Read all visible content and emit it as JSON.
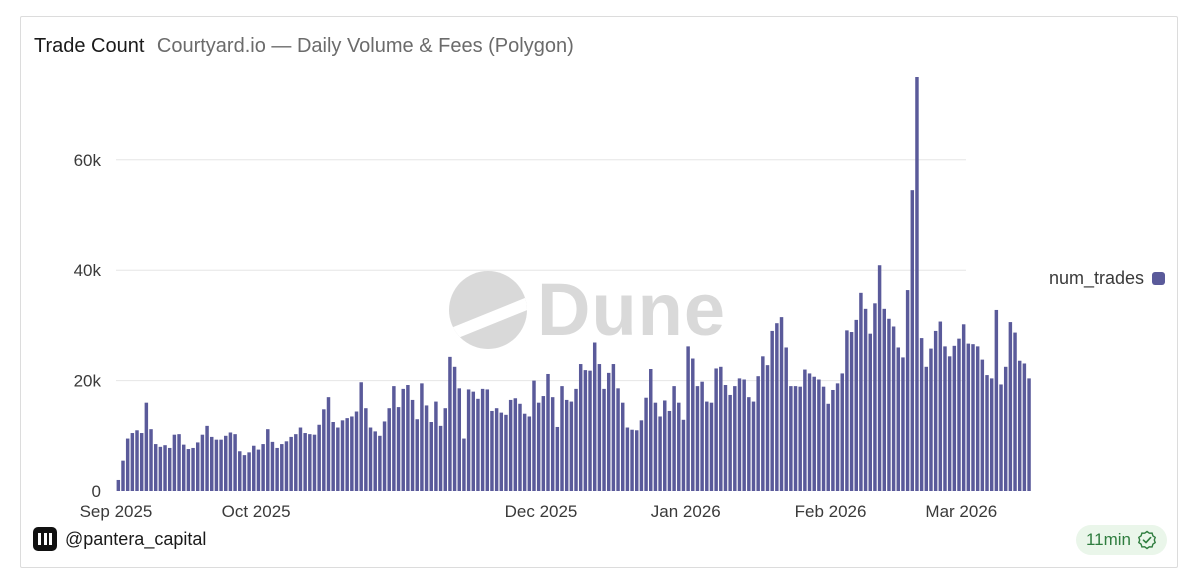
{
  "header": {
    "title": "Trade Count",
    "subtitle": "Courtyard.io — Daily Volume & Fees (Polygon)"
  },
  "watermark": {
    "text": "Dune"
  },
  "footer": {
    "handle": "@pantera_capital",
    "badge": "11min"
  },
  "colors": {
    "bar": "#5a5a9a",
    "grid": "#e6e6e6",
    "badge_bg": "#eaf6ea",
    "badge_text": "#2f7d3f"
  },
  "chart_data": {
    "type": "bar",
    "title": "Trade Count",
    "series": [
      {
        "name": "num_trades",
        "color": "#5a5a9a"
      }
    ],
    "legend": [
      "num_trades"
    ],
    "legend_position": "right",
    "xlabel": "",
    "ylabel": "",
    "x_start": "2025-09-01",
    "x_end": "2026-03-01",
    "x_ticks": [
      "Sep 2025",
      "Oct 2025",
      "Dec 2025",
      "Jan 2026",
      "Feb 2026",
      "Mar 2026"
    ],
    "x_tick_days": [
      0,
      30,
      91,
      122,
      153,
      181
    ],
    "y_ticks": [
      0,
      20000,
      40000,
      60000
    ],
    "y_tick_labels": [
      "0",
      "20k",
      "40k",
      "60k"
    ],
    "ylim": [
      0,
      75000
    ],
    "grid": true,
    "values": [
      2000,
      5500,
      9500,
      10500,
      11000,
      10500,
      16000,
      11200,
      8500,
      8000,
      8300,
      7800,
      10200,
      10300,
      8400,
      7600,
      7800,
      8800,
      10200,
      11800,
      9800,
      9300,
      9300,
      10000,
      10600,
      10300,
      7200,
      6500,
      7000,
      8200,
      7500,
      8500,
      11200,
      8900,
      7800,
      8500,
      9000,
      9800,
      10300,
      11500,
      10500,
      10300,
      10200,
      12000,
      14800,
      17000,
      12500,
      11500,
      12800,
      13200,
      13500,
      14400,
      19700,
      15000,
      11500,
      10800,
      10000,
      12600,
      15000,
      19000,
      15200,
      18500,
      19200,
      16500,
      13000,
      19500,
      15500,
      12500,
      16200,
      11800,
      15000,
      24300,
      22500,
      18600,
      9500,
      18400,
      18000,
      16700,
      18500,
      18400,
      14500,
      15000,
      14200,
      13800,
      16500,
      16800,
      15800,
      14000,
      13500,
      20000,
      16000,
      17200,
      21200,
      17000,
      11600,
      19000,
      16500,
      16200,
      18500,
      23000,
      21900,
      21800,
      26900,
      23000,
      18500,
      21400,
      23000,
      18600,
      16000,
      11500,
      11100,
      11000,
      12800,
      16900,
      22100,
      16000,
      13500,
      16400,
      14500,
      19000,
      16000,
      12900,
      26200,
      24000,
      19000,
      19800,
      16200,
      16000,
      22200,
      22500,
      19200,
      17400,
      19000,
      20400,
      20200,
      17000,
      16200,
      20800,
      24400,
      22800,
      29000,
      30400,
      31500,
      26000,
      19000,
      19000,
      18900,
      22000,
      21300,
      20700,
      20200,
      18900,
      15800,
      18300,
      19500,
      21300,
      29100,
      28800,
      31000,
      35900,
      33000,
      28500,
      34000,
      40900,
      33000,
      31200,
      29800,
      26000,
      24200,
      36400,
      54500,
      75000,
      27700,
      22500,
      25800,
      29000,
      30700,
      26200,
      24400,
      26300,
      27600,
      30200,
      26700,
      26600,
      26200,
      23800,
      21000,
      20400,
      32800,
      19300,
      22500,
      30600,
      28700,
      23600,
      23100,
      20400
    ]
  }
}
